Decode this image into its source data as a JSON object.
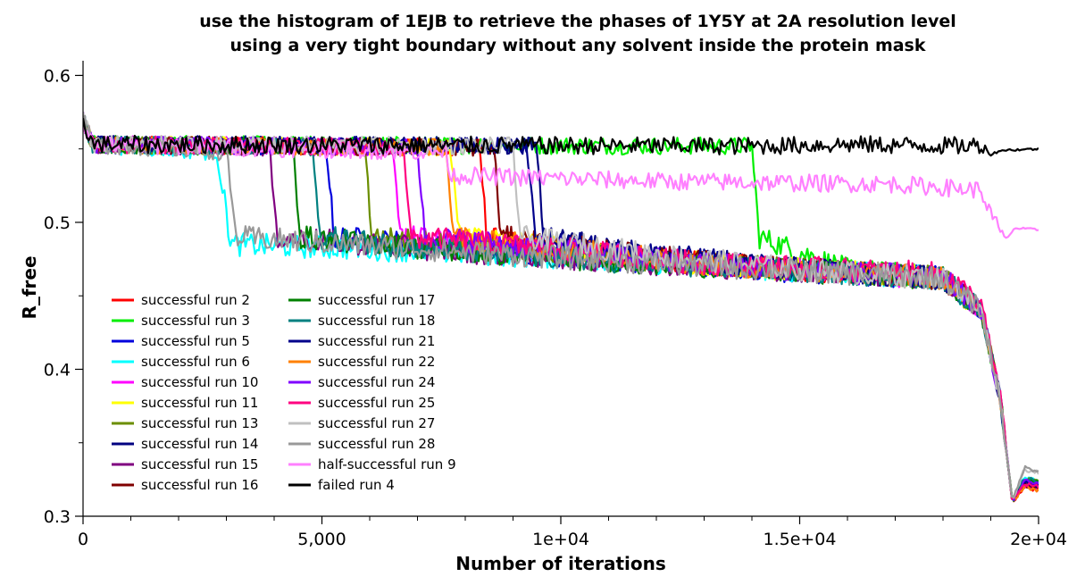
{
  "chart_data": {
    "type": "line",
    "title": "use the histogram of 1EJB to retrieve the phases of 1Y5Y at 2A resolution level",
    "subtitle": "using a very tight boundary without any solvent inside the protein mask",
    "xlabel": "Number of iterations",
    "ylabel": "R_free",
    "xlim": [
      0,
      20000
    ],
    "ylim": [
      0.3,
      0.61
    ],
    "x_ticks": [
      0,
      5000,
      10000,
      15000,
      20000
    ],
    "x_tick_labels": [
      "0",
      "5,000",
      "1e+04",
      "1.5e+04",
      "2e+04"
    ],
    "y_ticks": [
      0.3,
      0.4,
      0.5,
      0.6
    ],
    "y_tick_labels": [
      "0.3",
      "0.4",
      "0.5",
      "0.6"
    ],
    "grid": false,
    "legend_position": "bottom-left",
    "series": [
      {
        "name": "successful run 2",
        "color": "#ff0000",
        "drop_at": 8300,
        "final": 0.318,
        "points": [
          [
            0,
            0.57
          ],
          [
            200,
            0.553
          ],
          [
            8300,
            0.551
          ],
          [
            8450,
            0.49
          ],
          [
            9000,
            0.485
          ],
          [
            13000,
            0.472
          ],
          [
            18000,
            0.462
          ],
          [
            18800,
            0.44
          ],
          [
            19200,
            0.38
          ],
          [
            19450,
            0.31
          ],
          [
            19700,
            0.32
          ],
          [
            20000,
            0.318
          ]
        ]
      },
      {
        "name": "successful run 3",
        "color": "#00ee00",
        "drop_at": 14000,
        "final": 0.32,
        "points": [
          [
            0,
            0.57
          ],
          [
            200,
            0.553
          ],
          [
            14000,
            0.552
          ],
          [
            14150,
            0.49
          ],
          [
            16000,
            0.468
          ],
          [
            18000,
            0.462
          ],
          [
            18800,
            0.44
          ],
          [
            19200,
            0.38
          ],
          [
            19450,
            0.31
          ],
          [
            19700,
            0.322
          ],
          [
            20000,
            0.32
          ]
        ]
      },
      {
        "name": "successful run 5",
        "color": "#0000dd",
        "drop_at": 5100,
        "final": 0.322,
        "points": [
          [
            0,
            0.57
          ],
          [
            200,
            0.553
          ],
          [
            5100,
            0.551
          ],
          [
            5250,
            0.49
          ],
          [
            9000,
            0.48
          ],
          [
            13000,
            0.47
          ],
          [
            18000,
            0.462
          ],
          [
            18800,
            0.44
          ],
          [
            19200,
            0.38
          ],
          [
            19450,
            0.31
          ],
          [
            19700,
            0.324
          ],
          [
            20000,
            0.322
          ]
        ]
      },
      {
        "name": "successful run 6",
        "color": "#00ffff",
        "drop_at": 2800,
        "final": 0.325,
        "points": [
          [
            0,
            0.57
          ],
          [
            200,
            0.553
          ],
          [
            2800,
            0.548
          ],
          [
            3100,
            0.485
          ],
          [
            6000,
            0.482
          ],
          [
            10000,
            0.476
          ],
          [
            18000,
            0.462
          ],
          [
            18800,
            0.44
          ],
          [
            19200,
            0.38
          ],
          [
            19450,
            0.31
          ],
          [
            19700,
            0.327
          ],
          [
            20000,
            0.325
          ]
        ]
      },
      {
        "name": "successful run 10",
        "color": "#ff00ff",
        "drop_at": 6500,
        "final": 0.319,
        "points": [
          [
            0,
            0.57
          ],
          [
            200,
            0.553
          ],
          [
            6500,
            0.551
          ],
          [
            6650,
            0.49
          ],
          [
            9000,
            0.484
          ],
          [
            13000,
            0.472
          ],
          [
            18000,
            0.462
          ],
          [
            18800,
            0.44
          ],
          [
            19200,
            0.38
          ],
          [
            19450,
            0.31
          ],
          [
            19700,
            0.321
          ],
          [
            20000,
            0.319
          ]
        ]
      },
      {
        "name": "successful run 11",
        "color": "#ffff00",
        "drop_at": 7700,
        "final": 0.323,
        "points": [
          [
            0,
            0.57
          ],
          [
            200,
            0.553
          ],
          [
            7700,
            0.551
          ],
          [
            7850,
            0.49
          ],
          [
            10000,
            0.482
          ],
          [
            13000,
            0.472
          ],
          [
            18000,
            0.462
          ],
          [
            18800,
            0.44
          ],
          [
            19200,
            0.38
          ],
          [
            19450,
            0.31
          ],
          [
            19700,
            0.325
          ],
          [
            20000,
            0.323
          ]
        ]
      },
      {
        "name": "successful run 13",
        "color": "#6b8e00",
        "drop_at": 5900,
        "final": 0.324,
        "points": [
          [
            0,
            0.57
          ],
          [
            200,
            0.553
          ],
          [
            5900,
            0.551
          ],
          [
            6050,
            0.49
          ],
          [
            9000,
            0.482
          ],
          [
            13000,
            0.472
          ],
          [
            18000,
            0.462
          ],
          [
            18800,
            0.44
          ],
          [
            19200,
            0.38
          ],
          [
            19450,
            0.31
          ],
          [
            19700,
            0.326
          ],
          [
            20000,
            0.324
          ]
        ]
      },
      {
        "name": "successful run 14",
        "color": "#000080",
        "drop_at": 9500,
        "final": 0.321,
        "points": [
          [
            0,
            0.57
          ],
          [
            200,
            0.553
          ],
          [
            9500,
            0.552
          ],
          [
            9650,
            0.49
          ],
          [
            12000,
            0.478
          ],
          [
            15000,
            0.468
          ],
          [
            18000,
            0.462
          ],
          [
            18800,
            0.44
          ],
          [
            19200,
            0.38
          ],
          [
            19450,
            0.31
          ],
          [
            19700,
            0.323
          ],
          [
            20000,
            0.321
          ]
        ]
      },
      {
        "name": "successful run 15",
        "color": "#800080",
        "drop_at": 3900,
        "final": 0.32,
        "points": [
          [
            0,
            0.57
          ],
          [
            200,
            0.553
          ],
          [
            3900,
            0.551
          ],
          [
            4050,
            0.49
          ],
          [
            8000,
            0.48
          ],
          [
            12000,
            0.472
          ],
          [
            18000,
            0.462
          ],
          [
            18800,
            0.44
          ],
          [
            19200,
            0.38
          ],
          [
            19450,
            0.31
          ],
          [
            19700,
            0.322
          ],
          [
            20000,
            0.32
          ]
        ]
      },
      {
        "name": "successful run 16",
        "color": "#800000",
        "drop_at": 8600,
        "final": 0.319,
        "points": [
          [
            0,
            0.57
          ],
          [
            200,
            0.553
          ],
          [
            8600,
            0.551
          ],
          [
            8750,
            0.49
          ],
          [
            11000,
            0.48
          ],
          [
            14000,
            0.47
          ],
          [
            18000,
            0.462
          ],
          [
            18800,
            0.44
          ],
          [
            19200,
            0.38
          ],
          [
            19450,
            0.31
          ],
          [
            19700,
            0.321
          ],
          [
            20000,
            0.319
          ]
        ]
      },
      {
        "name": "successful run 17",
        "color": "#008000",
        "drop_at": 4400,
        "final": 0.323,
        "points": [
          [
            0,
            0.57
          ],
          [
            200,
            0.553
          ],
          [
            4400,
            0.551
          ],
          [
            4550,
            0.49
          ],
          [
            8000,
            0.48
          ],
          [
            12000,
            0.472
          ],
          [
            18000,
            0.462
          ],
          [
            18800,
            0.44
          ],
          [
            19200,
            0.38
          ],
          [
            19450,
            0.31
          ],
          [
            19700,
            0.325
          ],
          [
            20000,
            0.323
          ]
        ]
      },
      {
        "name": "successful run 18",
        "color": "#008080",
        "drop_at": 4800,
        "final": 0.324,
        "points": [
          [
            0,
            0.57
          ],
          [
            200,
            0.553
          ],
          [
            4800,
            0.551
          ],
          [
            4950,
            0.49
          ],
          [
            8000,
            0.48
          ],
          [
            12000,
            0.472
          ],
          [
            18000,
            0.462
          ],
          [
            18800,
            0.44
          ],
          [
            19200,
            0.38
          ],
          [
            19450,
            0.31
          ],
          [
            19700,
            0.326
          ],
          [
            20000,
            0.324
          ]
        ]
      },
      {
        "name": "successful run 21",
        "color": "#00008b",
        "drop_at": 9300,
        "final": 0.321,
        "points": [
          [
            0,
            0.57
          ],
          [
            200,
            0.553
          ],
          [
            9300,
            0.552
          ],
          [
            9450,
            0.49
          ],
          [
            12000,
            0.478
          ],
          [
            15000,
            0.468
          ],
          [
            18000,
            0.462
          ],
          [
            18800,
            0.44
          ],
          [
            19200,
            0.38
          ],
          [
            19450,
            0.31
          ],
          [
            19700,
            0.323
          ],
          [
            20000,
            0.321
          ]
        ]
      },
      {
        "name": "successful run 22",
        "color": "#ff8000",
        "drop_at": 7600,
        "final": 0.318,
        "points": [
          [
            0,
            0.57
          ],
          [
            200,
            0.553
          ],
          [
            7600,
            0.551
          ],
          [
            7750,
            0.49
          ],
          [
            10000,
            0.482
          ],
          [
            13000,
            0.472
          ],
          [
            18000,
            0.462
          ],
          [
            18800,
            0.44
          ],
          [
            19200,
            0.38
          ],
          [
            19450,
            0.31
          ],
          [
            19700,
            0.32
          ],
          [
            20000,
            0.318
          ]
        ]
      },
      {
        "name": "successful run 24",
        "color": "#8000ff",
        "drop_at": 7000,
        "final": 0.322,
        "points": [
          [
            0,
            0.57
          ],
          [
            200,
            0.553
          ],
          [
            7000,
            0.551
          ],
          [
            7150,
            0.49
          ],
          [
            10000,
            0.482
          ],
          [
            13000,
            0.472
          ],
          [
            18000,
            0.462
          ],
          [
            18800,
            0.44
          ],
          [
            19200,
            0.38
          ],
          [
            19450,
            0.31
          ],
          [
            19700,
            0.324
          ],
          [
            20000,
            0.322
          ]
        ]
      },
      {
        "name": "successful run 25",
        "color": "#ff0080",
        "drop_at": 6700,
        "final": 0.32,
        "points": [
          [
            0,
            0.57
          ],
          [
            200,
            0.553
          ],
          [
            6700,
            0.551
          ],
          [
            6850,
            0.49
          ],
          [
            10000,
            0.482
          ],
          [
            13000,
            0.472
          ],
          [
            18000,
            0.465
          ],
          [
            18800,
            0.445
          ],
          [
            19200,
            0.38
          ],
          [
            19450,
            0.31
          ],
          [
            19700,
            0.322
          ],
          [
            20000,
            0.32
          ]
        ]
      },
      {
        "name": "successful run 27",
        "color": "#c0c0c0",
        "drop_at": 9000,
        "final": 0.33,
        "points": [
          [
            0,
            0.57
          ],
          [
            200,
            0.553
          ],
          [
            9000,
            0.552
          ],
          [
            9150,
            0.49
          ],
          [
            12000,
            0.478
          ],
          [
            15000,
            0.468
          ],
          [
            18000,
            0.462
          ],
          [
            18800,
            0.44
          ],
          [
            19200,
            0.38
          ],
          [
            19450,
            0.31
          ],
          [
            19700,
            0.332
          ],
          [
            20000,
            0.33
          ]
        ]
      },
      {
        "name": "successful run 28",
        "color": "#999999",
        "drop_at": 3000,
        "final": 0.331,
        "points": [
          [
            0,
            0.57
          ],
          [
            200,
            0.553
          ],
          [
            3000,
            0.548
          ],
          [
            3200,
            0.49
          ],
          [
            8000,
            0.48
          ],
          [
            12000,
            0.472
          ],
          [
            18000,
            0.462
          ],
          [
            18800,
            0.44
          ],
          [
            19200,
            0.38
          ],
          [
            19450,
            0.31
          ],
          [
            19700,
            0.333
          ],
          [
            20000,
            0.331
          ]
        ]
      },
      {
        "name": "half-successful run 9",
        "color": "#ff80ff",
        "drop_at": null,
        "final": 0.495,
        "points": [
          [
            0,
            0.57
          ],
          [
            200,
            0.553
          ],
          [
            7600,
            0.548
          ],
          [
            7700,
            0.532
          ],
          [
            12000,
            0.528
          ],
          [
            17000,
            0.526
          ],
          [
            18800,
            0.522
          ],
          [
            19000,
            0.505
          ],
          [
            19300,
            0.488
          ],
          [
            19500,
            0.496
          ],
          [
            20000,
            0.495
          ]
        ]
      },
      {
        "name": "failed run 4",
        "color": "#000000",
        "drop_at": null,
        "final": 0.55,
        "points": [
          [
            0,
            0.57
          ],
          [
            200,
            0.553
          ],
          [
            14000,
            0.552
          ],
          [
            16000,
            0.553
          ],
          [
            18500,
            0.552
          ],
          [
            18800,
            0.553
          ],
          [
            19000,
            0.546
          ],
          [
            19200,
            0.549
          ],
          [
            20000,
            0.55
          ]
        ]
      }
    ]
  }
}
